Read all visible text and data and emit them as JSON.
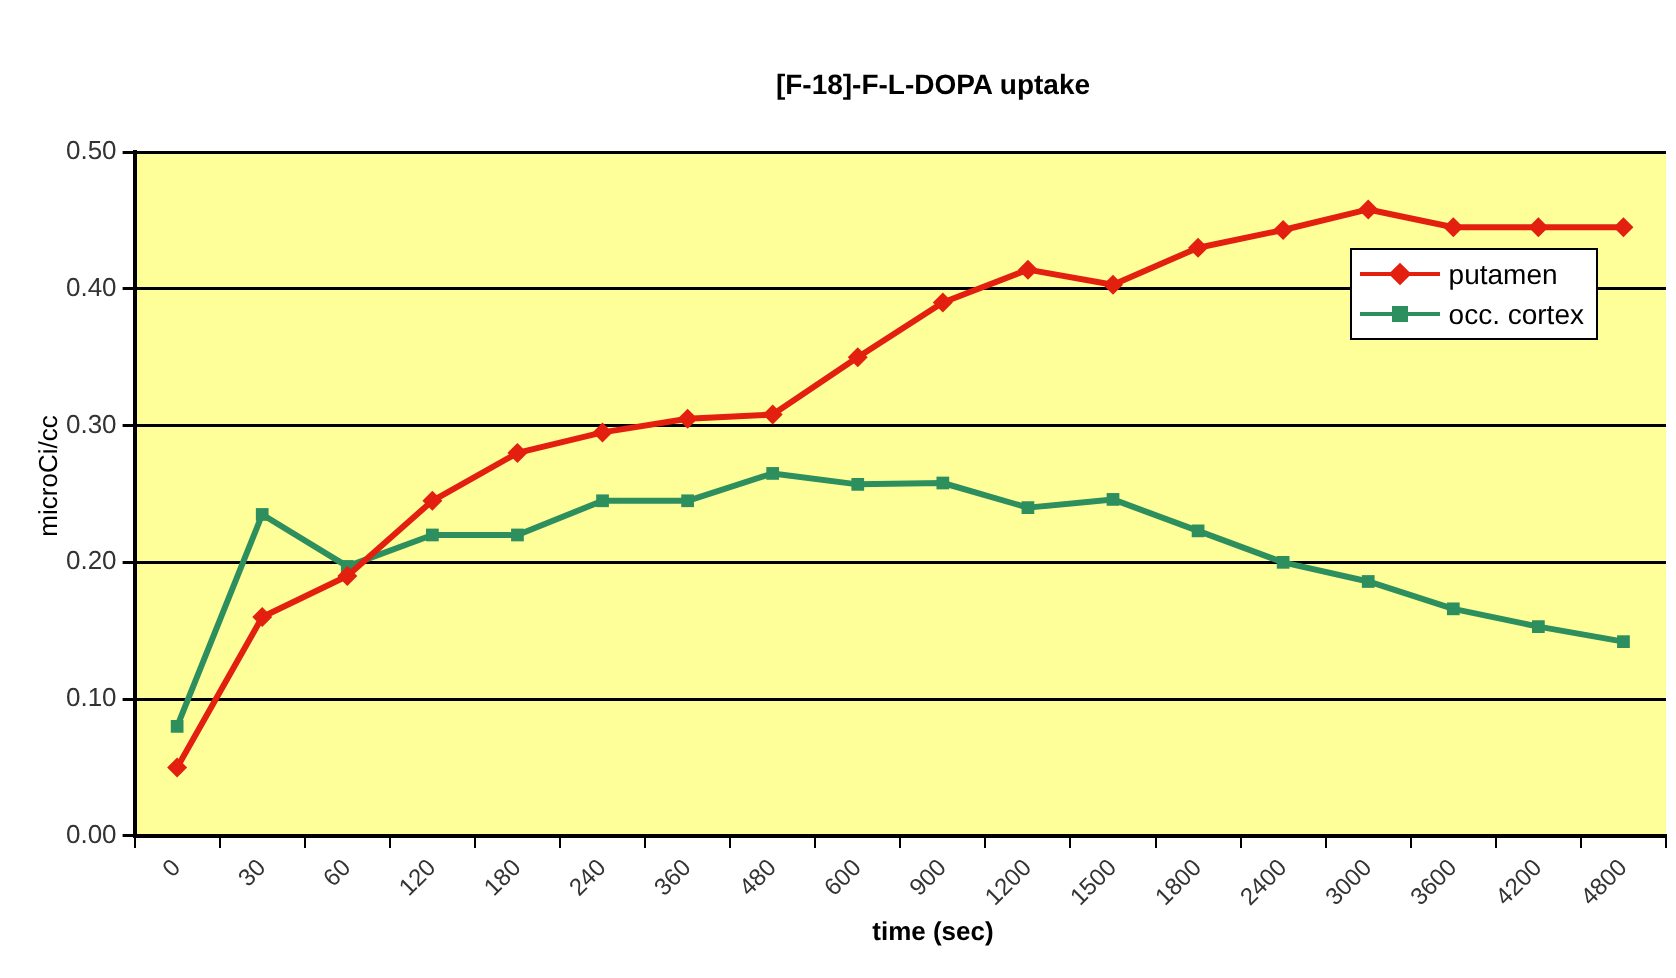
{
  "chart_data": {
    "type": "line",
    "title": "[F-18]-F-L-DOPA uptake",
    "xlabel": "time (sec)",
    "ylabel": "microCi/cc",
    "categories": [
      "0",
      "30",
      "60",
      "120",
      "180",
      "240",
      "360",
      "480",
      "600",
      "900",
      "1200",
      "1500",
      "1800",
      "2400",
      "3000",
      "3600",
      "4200",
      "4800"
    ],
    "series": [
      {
        "name": "putamen",
        "color": "#e3200f",
        "marker": "diamond",
        "values": [
          0.05,
          0.16,
          0.19,
          0.245,
          0.28,
          0.295,
          0.305,
          0.308,
          0.35,
          0.39,
          0.414,
          0.403,
          0.43,
          0.443,
          0.458,
          0.445,
          0.445,
          0.445
        ]
      },
      {
        "name": "occ. cortex",
        "color": "#2e8f5e",
        "marker": "square",
        "values": [
          0.08,
          0.235,
          0.197,
          0.22,
          0.22,
          0.245,
          0.245,
          0.265,
          0.257,
          0.258,
          0.24,
          0.246,
          0.223,
          0.2,
          0.186,
          0.166,
          0.153,
          0.142
        ]
      }
    ],
    "ylim": [
      0,
      0.5
    ],
    "yticks": [
      {
        "value": 0,
        "label": "0.00"
      },
      {
        "value": 0.1,
        "label": "0.10"
      },
      {
        "value": 0.2,
        "label": "0.20"
      },
      {
        "value": 0.3,
        "label": "0.30"
      },
      {
        "value": 0.4,
        "label": "0.40"
      },
      {
        "value": 0.5,
        "label": "0.50"
      }
    ],
    "grid": "y",
    "legend": "top right",
    "line_style": "solid"
  }
}
